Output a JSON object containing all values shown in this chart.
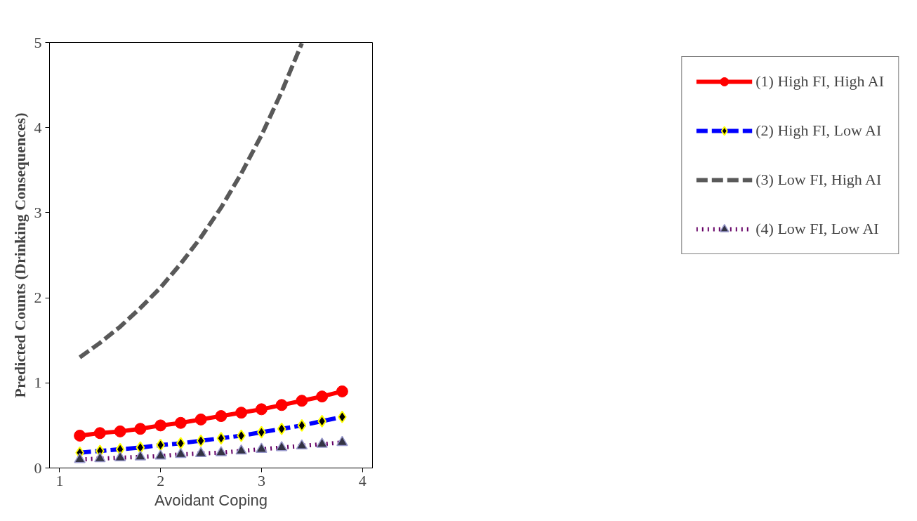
{
  "chart_data": {
    "type": "line",
    "xlabel": "Avoidant Coping",
    "ylabel": "Predicted Counts (Drinking Consequences)",
    "x": [
      1.2,
      1.4,
      1.6,
      1.8,
      2.0,
      2.2,
      2.4,
      2.6,
      2.8,
      3.0,
      3.2,
      3.4,
      3.6,
      3.8
    ],
    "series": [
      {
        "name": "(1) High FI, High AI",
        "color": "#ff0000",
        "line_style": "solid",
        "marker": "circle",
        "values": [
          0.38,
          0.41,
          0.43,
          0.46,
          0.5,
          0.53,
          0.57,
          0.61,
          0.65,
          0.69,
          0.74,
          0.79,
          0.84,
          0.9
        ]
      },
      {
        "name": "(2) High FI, Low AI",
        "color": "#0000ff",
        "line_style": "dashed",
        "marker": "diamond",
        "values": [
          0.18,
          0.2,
          0.22,
          0.24,
          0.27,
          0.29,
          0.32,
          0.35,
          0.38,
          0.42,
          0.46,
          0.5,
          0.55,
          0.6
        ]
      },
      {
        "name": "(3) Low FI, High AI",
        "color": "#595959",
        "line_style": "dashed",
        "marker": "none",
        "values": [
          1.3,
          1.47,
          1.66,
          1.88,
          2.12,
          2.4,
          2.71,
          3.06,
          3.46,
          3.91,
          4.42,
          4.99,
          null,
          null
        ]
      },
      {
        "name": "(4) Low FI, Low AI",
        "color": "#660066",
        "line_style": "dotted",
        "marker": "triangle",
        "values": [
          0.1,
          0.11,
          0.12,
          0.13,
          0.14,
          0.16,
          0.17,
          0.18,
          0.2,
          0.22,
          0.24,
          0.26,
          0.28,
          0.3
        ]
      }
    ],
    "xlim": [
      0.9,
      4.1
    ],
    "ylim": [
      0,
      5
    ],
    "xticks": [
      1,
      2,
      3,
      4
    ],
    "yticks": [
      0,
      1,
      2,
      3,
      4,
      5
    ],
    "grid": false,
    "legend": "right"
  }
}
